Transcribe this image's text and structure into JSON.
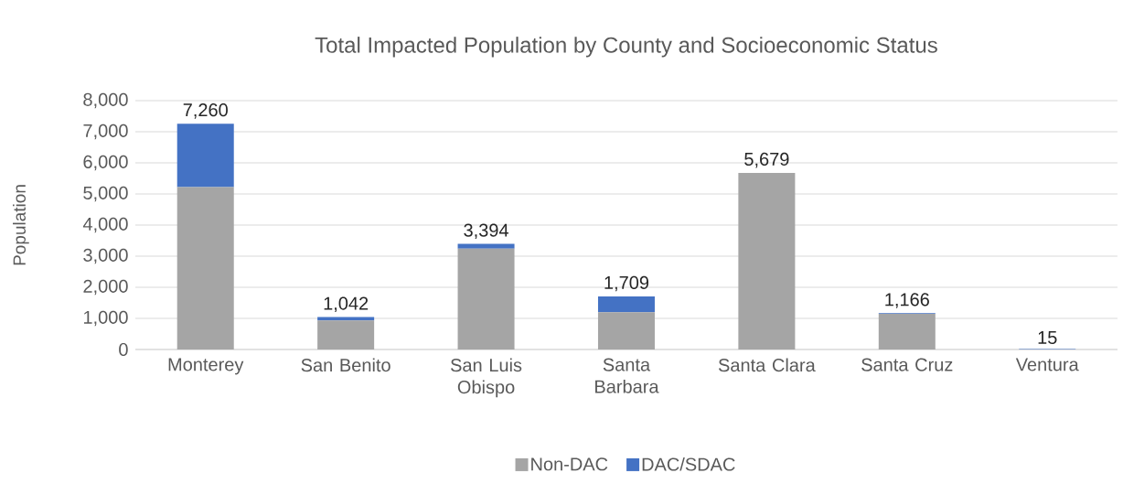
{
  "chart_data": {
    "type": "bar",
    "stacked": true,
    "title": "Total Impacted Population by County and Socioeconomic Status",
    "ylabel": "Population",
    "categories": [
      "Monterey",
      "San Benito",
      "San Luis Obispo",
      "Santa Barbara",
      "Santa Clara",
      "Santa Cruz",
      "Ventura"
    ],
    "series": [
      {
        "name": "Non-DAC",
        "color": "#a5a5a5",
        "values": [
          5220,
          930,
          3240,
          1200,
          5679,
          1150,
          0
        ]
      },
      {
        "name": "DAC/SDAC",
        "color": "#4472c4",
        "values": [
          2040,
          112,
          154,
          509,
          0,
          16,
          15
        ]
      }
    ],
    "totals": [
      "7,260",
      "1,042",
      "3,394",
      "1,709",
      "5,679",
      "1,166",
      "15"
    ],
    "ylim": [
      0,
      8000
    ],
    "yticks": [
      0,
      {
        "value": 1000,
        "label": "1,000"
      },
      {
        "value": 2000,
        "label": "2,000"
      },
      {
        "value": 3000,
        "label": "3,000"
      },
      {
        "value": 4000,
        "label": "4,000"
      },
      {
        "value": 5000,
        "label": "5,000"
      },
      {
        "value": 6000,
        "label": "6,000"
      },
      {
        "value": 7000,
        "label": "7,000"
      },
      {
        "value": 8000,
        "label": "8,000"
      }
    ],
    "grid": "y",
    "legend": "bottom"
  }
}
